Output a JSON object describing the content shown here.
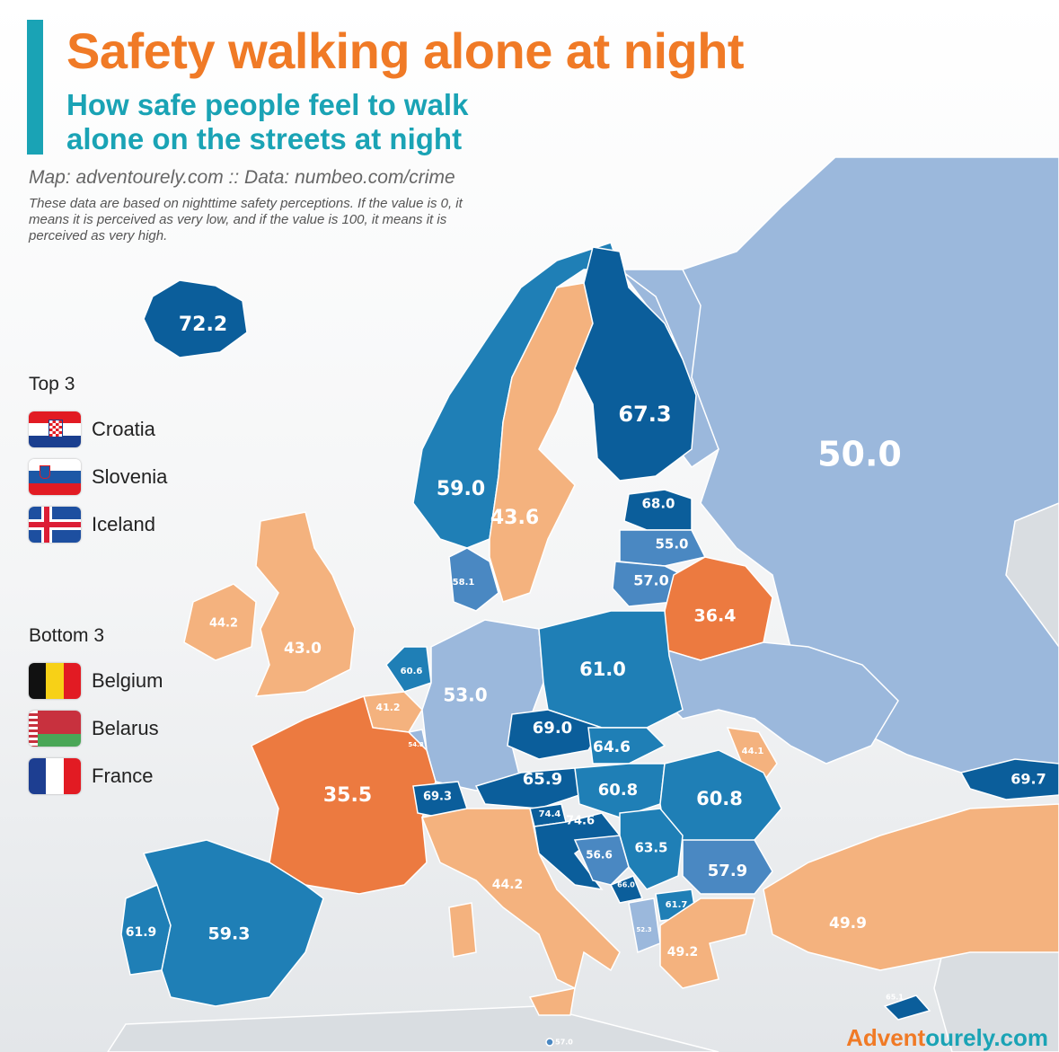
{
  "title": "Safety walking alone at night",
  "subtitle": "How safe people feel to walk alone on the streets at night",
  "source": "Map: adventourely.com :: Data: numbeo.com/crime",
  "note": "These data are based on nighttime safety perceptions. If the value is 0, it means it is perceived as very low, and if the value is 100, it means it is perceived as very high.",
  "legend": {
    "top_title": "Top 3",
    "top": [
      {
        "label": "Croatia",
        "flag": "croatia-flag"
      },
      {
        "label": "Slovenia",
        "flag": "slovenia-flag"
      },
      {
        "label": "Iceland",
        "flag": "iceland-flag"
      }
    ],
    "bottom_title": "Bottom 3",
    "bottom": [
      {
        "label": "Belgium",
        "flag": "belgium-flag"
      },
      {
        "label": "Belarus",
        "flag": "belarus-flag"
      },
      {
        "label": "France",
        "flag": "france-flag"
      }
    ]
  },
  "colors": {
    "very_high": "#0b5e9b",
    "high": "#1f7fb6",
    "mid_high": "#4a88c2",
    "mid": "#9bb8dc",
    "low": "#f4b27e",
    "very_low": "#ec7a40",
    "no_data": "#d9dde1",
    "accent_orange": "#f07a26",
    "accent_teal": "#1aa3b5"
  },
  "regions": [
    {
      "id": "russia",
      "value": "50.0"
    },
    {
      "id": "finland",
      "value": "67.3"
    },
    {
      "id": "iceland",
      "value": "72.2"
    },
    {
      "id": "norway",
      "value": "59.0"
    },
    {
      "id": "sweden",
      "value": "43.6"
    },
    {
      "id": "estonia",
      "value": "68.0"
    },
    {
      "id": "latvia",
      "value": "55.0"
    },
    {
      "id": "lithuania",
      "value": "57.0"
    },
    {
      "id": "belarus",
      "value": "36.4"
    },
    {
      "id": "denmark",
      "value": "58.1"
    },
    {
      "id": "ireland",
      "value": "44.2"
    },
    {
      "id": "united_kingdom",
      "value": "43.0"
    },
    {
      "id": "netherlands",
      "value": "60.6"
    },
    {
      "id": "belgium",
      "value": "41.2"
    },
    {
      "id": "luxembourg",
      "value": "54.8"
    },
    {
      "id": "germany",
      "value": "53.0"
    },
    {
      "id": "poland",
      "value": "61.0"
    },
    {
      "id": "ukraine",
      "value": ""
    },
    {
      "id": "czechia",
      "value": "69.0"
    },
    {
      "id": "slovakia",
      "value": "64.6"
    },
    {
      "id": "moldova",
      "value": "44.1"
    },
    {
      "id": "france",
      "value": "35.5"
    },
    {
      "id": "switzerland",
      "value": "69.3"
    },
    {
      "id": "austria",
      "value": "65.9"
    },
    {
      "id": "hungary",
      "value": "60.8"
    },
    {
      "id": "romania",
      "value": "60.8"
    },
    {
      "id": "georgia",
      "value": "69.7"
    },
    {
      "id": "slovenia",
      "value": "74.4"
    },
    {
      "id": "croatia",
      "value": "74.6"
    },
    {
      "id": "bosnia",
      "value": "56.6"
    },
    {
      "id": "serbia",
      "value": "63.5"
    },
    {
      "id": "montenegro",
      "value": "66.0"
    },
    {
      "id": "north_macedonia",
      "value": "61.7"
    },
    {
      "id": "albania",
      "value": "52.3"
    },
    {
      "id": "bulgaria",
      "value": "57.9"
    },
    {
      "id": "greece",
      "value": "49.2"
    },
    {
      "id": "turkey",
      "value": "49.9"
    },
    {
      "id": "cyprus",
      "value": "65.1"
    },
    {
      "id": "malta",
      "value": "57.0"
    },
    {
      "id": "italy",
      "value": "44.2"
    },
    {
      "id": "portugal",
      "value": "61.9"
    },
    {
      "id": "spain",
      "value": "59.3"
    }
  ],
  "brand": {
    "part1": "Advent",
    "part2": "ourely.com"
  }
}
